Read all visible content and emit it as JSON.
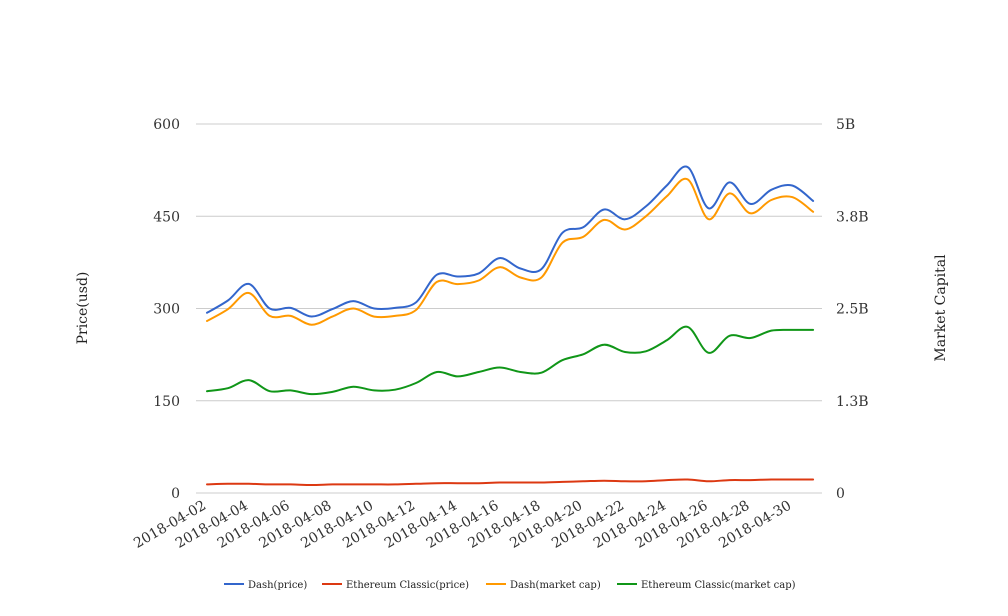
{
  "chart_data": {
    "type": "line",
    "title": "",
    "xlabel": "",
    "ylabel": "Price(usd)",
    "y2label": "Market Capital",
    "ylim": [
      0,
      600
    ],
    "y2lim": [
      0,
      5000000000
    ],
    "yticks": [
      "0",
      "150",
      "300",
      "450",
      "600"
    ],
    "y2ticks": [
      "0",
      "1.3B",
      "2.5B",
      "3.8B",
      "5B"
    ],
    "grid": true,
    "legend": "bottom",
    "x": [
      "2018-04-02",
      "2018-04-03",
      "2018-04-04",
      "2018-04-05",
      "2018-04-06",
      "2018-04-07",
      "2018-04-08",
      "2018-04-09",
      "2018-04-10",
      "2018-04-11",
      "2018-04-12",
      "2018-04-13",
      "2018-04-14",
      "2018-04-15",
      "2018-04-16",
      "2018-04-17",
      "2018-04-18",
      "2018-04-19",
      "2018-04-20",
      "2018-04-21",
      "2018-04-22",
      "2018-04-23",
      "2018-04-24",
      "2018-04-25",
      "2018-04-26",
      "2018-04-27",
      "2018-04-28",
      "2018-04-29",
      "2018-04-30",
      "2018-05-01"
    ],
    "xticks": [
      "2018-04-02",
      "2018-04-04",
      "2018-04-06",
      "2018-04-08",
      "2018-04-10",
      "2018-04-12",
      "2018-04-14",
      "2018-04-16",
      "2018-04-18",
      "2018-04-20",
      "2018-04-22",
      "2018-04-24",
      "2018-04-26",
      "2018-04-28",
      "2018-04-30"
    ],
    "series": [
      {
        "name": "Dash(price)",
        "axis": "left",
        "color": "#3366cc",
        "values": [
          293,
          313,
          340,
          300,
          301,
          287,
          299,
          312,
          300,
          301,
          310,
          355,
          352,
          357,
          382,
          365,
          364,
          423,
          432,
          461,
          445,
          466,
          500,
          530,
          463,
          505,
          470,
          493,
          500,
          475
        ]
      },
      {
        "name": "Ethereum Classic(price)",
        "axis": "left",
        "color": "#dc3912",
        "values": [
          14,
          15,
          15,
          14,
          14,
          13,
          14,
          14,
          14,
          14,
          15,
          16,
          16,
          16,
          17,
          17,
          17,
          18,
          19,
          20,
          19,
          19,
          21,
          22,
          19,
          21,
          21,
          22,
          22,
          22
        ]
      },
      {
        "name": "Dash(market cap)",
        "axis": "right",
        "color": "#ff9900",
        "values": [
          2330000000,
          2490000000,
          2710000000,
          2400000000,
          2400000000,
          2280000000,
          2390000000,
          2500000000,
          2390000000,
          2400000000,
          2480000000,
          2860000000,
          2830000000,
          2880000000,
          3060000000,
          2920000000,
          2920000000,
          3390000000,
          3470000000,
          3700000000,
          3570000000,
          3750000000,
          4020000000,
          4250000000,
          3710000000,
          4060000000,
          3790000000,
          3970000000,
          4010000000,
          3810000000
        ]
      },
      {
        "name": "Ethereum Classic(market cap)",
        "axis": "right",
        "color": "#109618",
        "values": [
          1380000000,
          1420000000,
          1530000000,
          1380000000,
          1390000000,
          1340000000,
          1370000000,
          1440000000,
          1390000000,
          1400000000,
          1490000000,
          1640000000,
          1580000000,
          1640000000,
          1700000000,
          1640000000,
          1630000000,
          1800000000,
          1880000000,
          2010000000,
          1910000000,
          1920000000,
          2070000000,
          2250000000,
          1900000000,
          2130000000,
          2100000000,
          2200000000,
          2210000000,
          2210000000
        ]
      }
    ]
  }
}
